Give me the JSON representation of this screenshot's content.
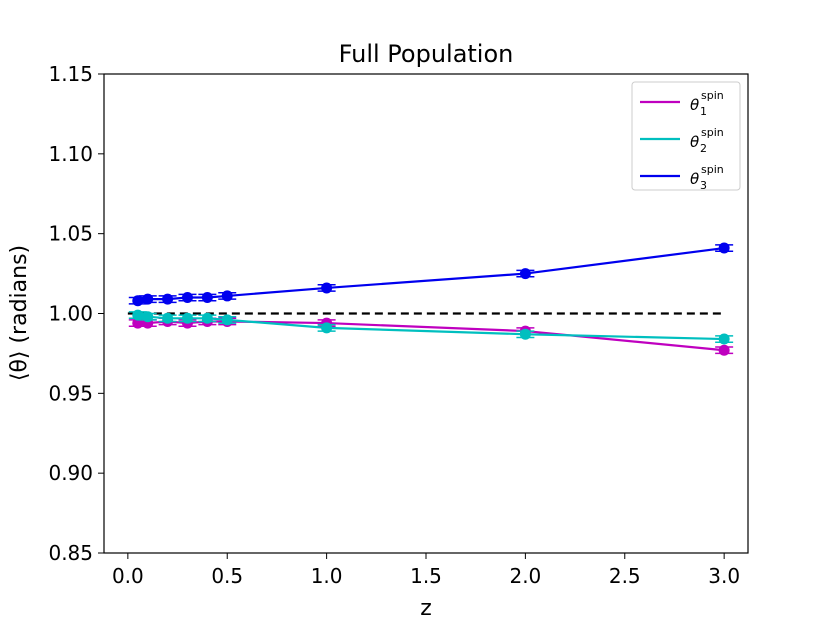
{
  "chart_data": {
    "type": "line",
    "title": "Full Population",
    "xlabel": "z",
    "ylabel": "⟨θ⟩ (radians)",
    "xlim": [
      -0.12,
      3.12
    ],
    "ylim": [
      0.85,
      1.15
    ],
    "xticks": [
      0.0,
      0.5,
      1.0,
      1.5,
      2.0,
      2.5,
      3.0
    ],
    "xtick_labels": [
      "0.0",
      "0.5",
      "1.0",
      "1.5",
      "2.0",
      "2.5",
      "3.0"
    ],
    "yticks": [
      0.85,
      0.9,
      0.95,
      1.0,
      1.05,
      1.1,
      1.15
    ],
    "ytick_labels": [
      "0.85",
      "0.90",
      "0.95",
      "1.00",
      "1.05",
      "1.10",
      "1.15"
    ],
    "grid": false,
    "legend_position": "top-right",
    "reference_line": {
      "y": 1.0,
      "style": "dashed",
      "color": "#000000",
      "x_range": [
        0.0,
        3.0
      ]
    },
    "x": [
      0.05,
      0.1,
      0.2,
      0.3,
      0.4,
      0.5,
      1.0,
      2.0,
      3.0
    ],
    "series": [
      {
        "name": "θ",
        "sub": "1",
        "sup": "spin",
        "color": "#bf00bf",
        "values": [
          0.994,
          0.994,
          0.995,
          0.994,
          0.995,
          0.995,
          0.994,
          0.989,
          0.977
        ],
        "errors": [
          0.002,
          0.002,
          0.002,
          0.002,
          0.002,
          0.002,
          0.002,
          0.002,
          0.002
        ]
      },
      {
        "name": "θ",
        "sub": "2",
        "sup": "spin",
        "color": "#00bfbf",
        "values": [
          0.999,
          0.998,
          0.997,
          0.997,
          0.997,
          0.996,
          0.991,
          0.987,
          0.984
        ],
        "errors": [
          0.002,
          0.002,
          0.002,
          0.002,
          0.002,
          0.002,
          0.002,
          0.002,
          0.002
        ]
      },
      {
        "name": "θ",
        "sub": "3",
        "sup": "spin",
        "color": "#0000ee",
        "values": [
          1.008,
          1.009,
          1.009,
          1.01,
          1.01,
          1.011,
          1.016,
          1.025,
          1.041
        ],
        "errors": [
          0.002,
          0.002,
          0.002,
          0.002,
          0.002,
          0.002,
          0.002,
          0.002,
          0.002
        ]
      }
    ]
  }
}
